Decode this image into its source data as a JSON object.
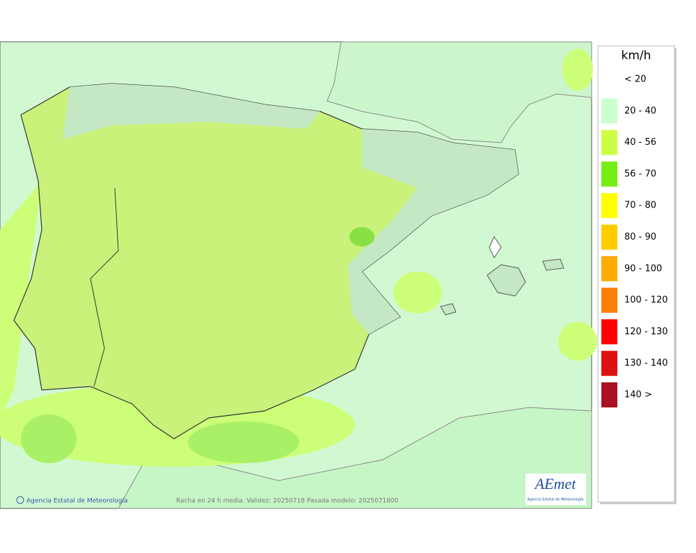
{
  "legend": {
    "title": "km/h",
    "items": [
      {
        "label": "< 20",
        "color": "#ffffff"
      },
      {
        "label": "20 - 40",
        "color": "#ccffcc"
      },
      {
        "label": "40 - 56",
        "color": "#ccff44"
      },
      {
        "label": "56 - 70",
        "color": "#77ee11"
      },
      {
        "label": "70 - 80",
        "color": "#ffff00"
      },
      {
        "label": "80 - 90",
        "color": "#ffcc00"
      },
      {
        "label": "90 - 100",
        "color": "#ffaa00"
      },
      {
        "label": "100 - 120",
        "color": "#ff7f00"
      },
      {
        "label": "120 - 130",
        "color": "#ff0000"
      },
      {
        "label": "130 - 140",
        "color": "#dd1111"
      },
      {
        "label": "140 >",
        "color": "#aa1122"
      }
    ]
  },
  "map": {
    "credit": "Agencia Estatal de Meteorología",
    "caption": "Racha en 24 h media. Validez: 20250718 Pasada modelo: 2025071800",
    "logo": {
      "name": "AEmet",
      "subtitle": "Agencia Estatal de Meteorología"
    }
  }
}
